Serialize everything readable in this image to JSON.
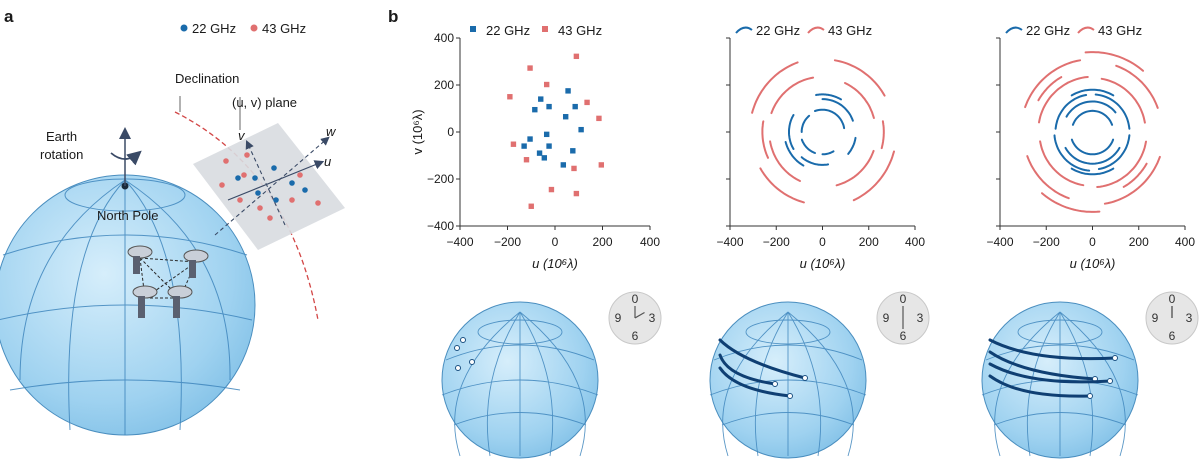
{
  "panel_a": {
    "letter": "a",
    "legend": [
      {
        "label": "22 GHz",
        "color": "#1a6bab"
      },
      {
        "label": "43 GHz",
        "color": "#e07070"
      }
    ],
    "declination_label": "Declination",
    "uv_plane_label": "(u, v) plane",
    "earth_rotation_line1": "Earth",
    "earth_rotation_line2": "rotation",
    "north_pole_label": "North Pole",
    "axis_u": "u",
    "axis_v": "v",
    "axis_w": "w"
  },
  "panel_b": {
    "letter": "b",
    "legend": [
      {
        "label": "22 GHz",
        "color": "#1a6bab"
      },
      {
        "label": "43 GHz",
        "color": "#e07070"
      }
    ],
    "clocks": [
      {
        "n0": "0",
        "n3": "3",
        "n6": "6",
        "n9": "9",
        "hour": 2
      },
      {
        "n0": "0",
        "n3": "3",
        "n6": "6",
        "n9": "9",
        "hour": 6
      },
      {
        "n0": "0",
        "n3": "3",
        "n6": "6",
        "n9": "9",
        "hour": 0
      }
    ]
  },
  "chart_data": [
    {
      "type": "scatter",
      "xlabel": "u (10⁶λ)",
      "ylabel": "v (10⁶λ)",
      "xlim": [
        -400,
        400
      ],
      "ylim": [
        -400,
        400
      ],
      "xticks": [
        "−400",
        "−200",
        "0",
        "200",
        "400"
      ],
      "yticks": [
        "400",
        "200",
        "0",
        "−200",
        "−400"
      ],
      "legend_position": "top",
      "series": [
        {
          "name": "22 GHz",
          "color": "#1a6bab",
          "points": [
            [
              -60,
              140
            ],
            [
              -25,
              108
            ],
            [
              55,
              175
            ],
            [
              -85,
              95
            ],
            [
              45,
              65
            ],
            [
              85,
              108
            ],
            [
              -105,
              -30
            ],
            [
              -35,
              -10
            ],
            [
              110,
              10
            ],
            [
              75,
              -80
            ],
            [
              -65,
              -90
            ],
            [
              -130,
              -60
            ],
            [
              -45,
              -110
            ],
            [
              35,
              -140
            ],
            [
              -25,
              -60
            ]
          ]
        },
        {
          "name": "43 GHz",
          "color": "#e07070",
          "points": [
            [
              90,
              322
            ],
            [
              -105,
              272
            ],
            [
              -35,
              202
            ],
            [
              -190,
              150
            ],
            [
              135,
              126
            ],
            [
              185,
              58
            ],
            [
              -175,
              -52
            ],
            [
              -120,
              -118
            ],
            [
              80,
              -155
            ],
            [
              195,
              -140
            ],
            [
              -15,
              -245
            ],
            [
              90,
              -262
            ],
            [
              -100,
              -316
            ]
          ]
        }
      ]
    },
    {
      "type": "line",
      "xlabel": "u (10⁶λ)",
      "ylabel": "",
      "xlim": [
        -400,
        400
      ],
      "ylim": [
        -400,
        400
      ],
      "xticks": [
        "−400",
        "−200",
        "0",
        "200",
        "400"
      ],
      "yticks": [
        "400",
        "200",
        "0",
        "−200",
        "−400"
      ],
      "legend_position": "top",
      "series": [
        {
          "name": "22 GHz",
          "color": "#1a6bab",
          "arcs": [
            [
              95,
              10,
              110
            ],
            [
              90,
              130,
              180
            ],
            [
              95,
              200,
              250
            ],
            [
              95,
              270,
              300
            ],
            [
              140,
              20,
              90
            ],
            [
              145,
              150,
              210
            ],
            [
              140,
              230,
              280
            ],
            [
              145,
              320,
              350
            ],
            [
              160,
              60,
              100
            ],
            [
              165,
              195,
              240
            ]
          ]
        },
        {
          "name": "43 GHz",
          "color": "#e07070",
          "arcs": [
            [
              230,
              15,
              65
            ],
            [
              235,
              100,
              160
            ],
            [
              230,
              190,
              245
            ],
            [
              235,
              285,
              340
            ],
            [
              310,
              30,
              80
            ],
            [
              315,
              110,
              165
            ],
            [
              310,
              210,
              255
            ],
            [
              320,
              295,
              345
            ],
            [
              260,
              170,
              205
            ],
            [
              265,
              345,
              370
            ]
          ]
        }
      ]
    },
    {
      "type": "line",
      "xlabel": "u (10⁶λ)",
      "ylabel": "",
      "xlim": [
        -400,
        400
      ],
      "ylim": [
        -400,
        400
      ],
      "xticks": [
        "−400",
        "−200",
        "0",
        "200",
        "400"
      ],
      "yticks": [
        "400",
        "200",
        "0",
        "−200",
        "−400"
      ],
      "legend_position": "top",
      "series": [
        {
          "name": "22 GHz",
          "color": "#1a6bab",
          "arcs": [
            [
              90,
              20,
              160
            ],
            [
              95,
              200,
              340
            ],
            [
              130,
              40,
              150
            ],
            [
              135,
              210,
              330
            ],
            [
              160,
              5,
              85
            ],
            [
              160,
              100,
              175
            ],
            [
              165,
              185,
              265
            ],
            [
              160,
              280,
              355
            ],
            [
              180,
              60,
              120
            ],
            [
              180,
              240,
              300
            ]
          ]
        },
        {
          "name": "43 GHz",
          "color": "#e07070",
          "arcs": [
            [
              230,
              10,
              80
            ],
            [
              235,
              95,
              170
            ],
            [
              230,
              190,
              260
            ],
            [
              235,
              275,
              350
            ],
            [
              300,
              20,
              70
            ],
            [
              310,
              100,
              160
            ],
            [
              300,
              200,
              250
            ],
            [
              310,
              280,
              340
            ],
            [
              340,
              50,
              95
            ],
            [
              340,
              230,
              275
            ],
            [
              270,
              120,
              150
            ],
            [
              270,
              300,
              330
            ]
          ]
        }
      ]
    }
  ]
}
